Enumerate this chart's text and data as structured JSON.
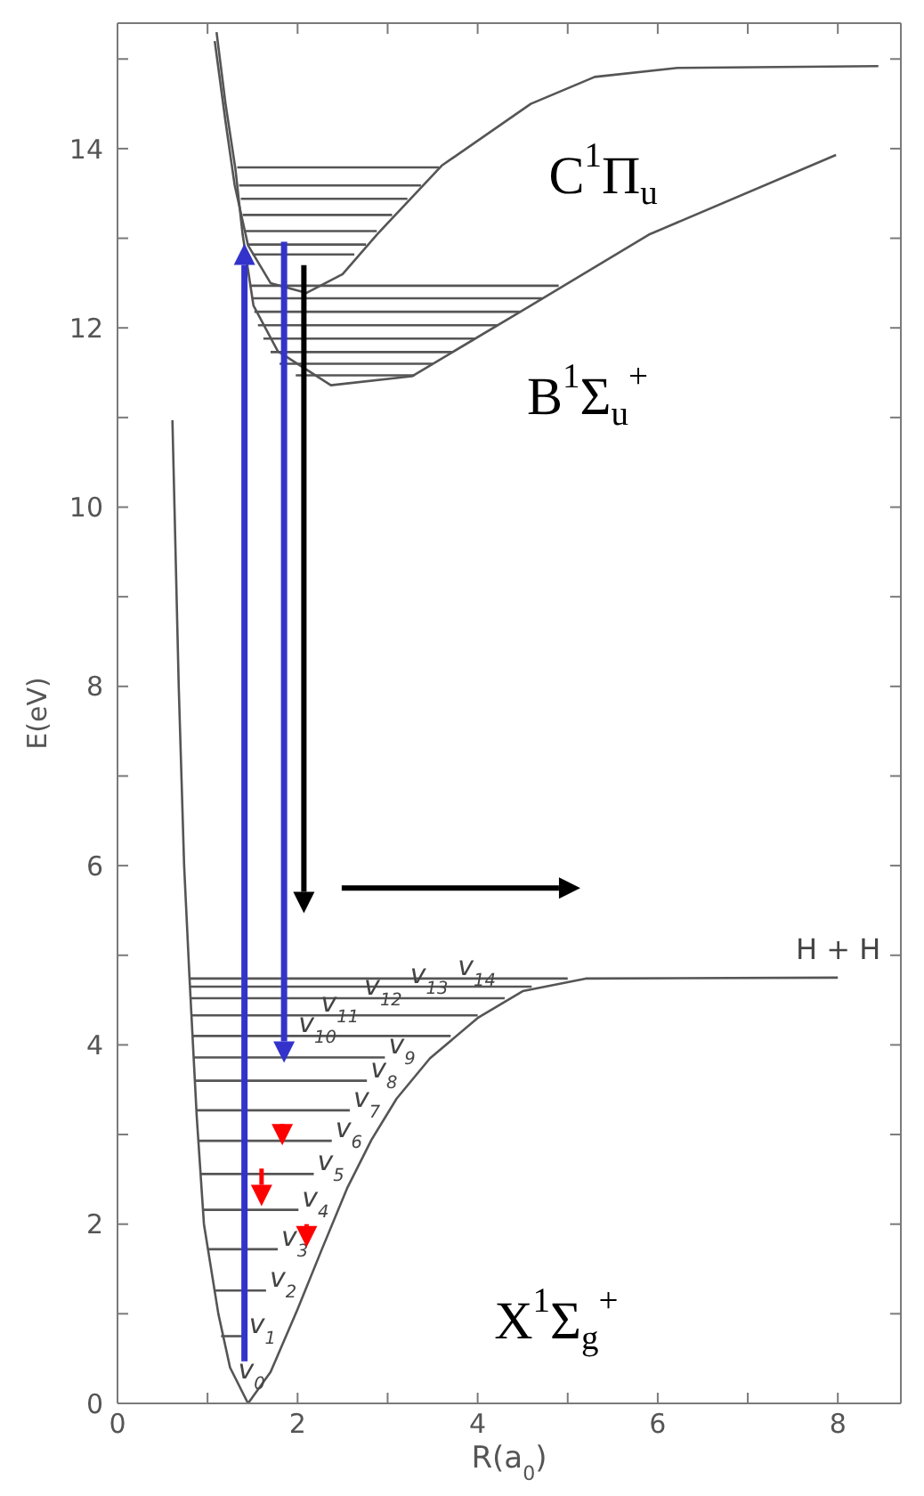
{
  "chart_data": {
    "type": "line",
    "xlabel": "R(a$_{0}$)",
    "ylabel": "E(eV)",
    "xlim": [
      0,
      8.7
    ],
    "ylim": [
      0,
      15.4
    ],
    "xticks": [
      0,
      {
        "value": 1,
        "label": null
      },
      2,
      {
        "value": 3,
        "label": null
      },
      4,
      {
        "value": 5,
        "label": null
      },
      6,
      {
        "value": 7,
        "label": null
      },
      8
    ],
    "yticks": [
      0,
      {
        "value": 1,
        "label": null
      },
      2,
      {
        "value": 3,
        "label": null
      },
      4,
      {
        "value": 5,
        "label": null
      },
      6,
      {
        "value": 7,
        "label": null
      },
      8,
      {
        "value": 9,
        "label": null
      },
      10,
      {
        "value": 11,
        "label": null
      },
      12,
      {
        "value": 13,
        "label": null
      },
      14,
      {
        "value": 15,
        "label": null
      }
    ],
    "marker": "none",
    "series": [
      {
        "color": "#555555",
        "x": [
          0.61,
          0.68,
          0.74,
          0.8,
          0.88,
          0.96,
          1.12,
          1.25,
          1.45,
          1.7,
          2.0,
          2.27,
          2.55,
          2.82,
          3.1,
          3.47,
          4.0,
          4.5,
          5.2,
          8
        ],
        "values": [
          10.97,
          8,
          6,
          4.74,
          3.2,
          2,
          1,
          0.4,
          0,
          0.35,
          1.05,
          1.72,
          2.4,
          2.94,
          3.4,
          3.85,
          4.3,
          4.6,
          4.74,
          4.75
        ]
      },
      {
        "color": "#555555",
        "x": [
          1.1,
          1.2,
          1.31,
          1.39,
          1.51,
          1.78,
          2.37,
          3.27,
          4.59,
          5.9,
          7.98
        ],
        "values": [
          15.3,
          14.5,
          13.77,
          13.04,
          12.25,
          11.74,
          11.36,
          11.46,
          12.25,
          13.04,
          13.93
        ]
      },
      {
        "color": "#555555",
        "x": [
          1.08,
          1.2,
          1.3,
          1.45,
          1.7,
          2.1,
          2.5,
          2.88,
          3.6,
          4.59,
          5.3,
          6.22,
          8.45
        ],
        "values": [
          15.2,
          14.3,
          13.6,
          12.92,
          12.5,
          12.39,
          12.6,
          13.04,
          13.81,
          14.5,
          14.8,
          14.9,
          14.92
        ]
      },
      {
        "color": "#555555",
        "x": [
          1.15,
          1.42
        ],
        "values": [
          0.75,
          0.75
        ]
      },
      {
        "color": "#555555",
        "x": [
          1.07,
          1.65
        ],
        "values": [
          1.26,
          1.26
        ]
      },
      {
        "color": "#555555",
        "x": [
          1.0,
          1.78
        ],
        "values": [
          1.72,
          1.72
        ]
      },
      {
        "color": "#555555",
        "x": [
          0.95,
          2.01
        ],
        "values": [
          2.16,
          2.16
        ]
      },
      {
        "color": "#555555",
        "x": [
          0.92,
          2.18
        ],
        "values": [
          2.56,
          2.56
        ]
      },
      {
        "color": "#555555",
        "x": [
          0.9,
          2.38
        ],
        "values": [
          2.93,
          2.93
        ]
      },
      {
        "color": "#555555",
        "x": [
          0.88,
          2.58
        ],
        "values": [
          3.27,
          3.27
        ]
      },
      {
        "color": "#555555",
        "x": [
          0.86,
          2.77
        ],
        "values": [
          3.6,
          3.6
        ]
      },
      {
        "color": "#555555",
        "x": [
          0.85,
          2.97
        ],
        "values": [
          3.86,
          3.86
        ]
      },
      {
        "color": "#555555",
        "x": [
          0.84,
          3.7
        ],
        "values": [
          4.1,
          4.1
        ]
      },
      {
        "color": "#555555",
        "x": [
          0.83,
          4.0
        ],
        "values": [
          4.33,
          4.33
        ]
      },
      {
        "color": "#555555",
        "x": [
          0.82,
          4.3
        ],
        "values": [
          4.52,
          4.52
        ]
      },
      {
        "color": "#555555",
        "x": [
          0.81,
          4.6
        ],
        "values": [
          4.65,
          4.65
        ]
      },
      {
        "color": "#555555",
        "x": [
          0.8,
          5.0
        ],
        "values": [
          4.74,
          4.74
        ]
      },
      {
        "color": "#555555",
        "x": [
          1.47,
          4.9
        ],
        "values": [
          12.47,
          12.47
        ]
      },
      {
        "color": "#555555",
        "x": [
          1.49,
          4.72
        ],
        "values": [
          12.33,
          12.33
        ]
      },
      {
        "color": "#555555",
        "x": [
          1.52,
          4.47
        ],
        "values": [
          12.18,
          12.18
        ]
      },
      {
        "color": "#555555",
        "x": [
          1.56,
          4.22
        ],
        "values": [
          12.03,
          12.03
        ]
      },
      {
        "color": "#555555",
        "x": [
          1.62,
          3.97
        ],
        "values": [
          11.88,
          11.88
        ]
      },
      {
        "color": "#555555",
        "x": [
          1.7,
          3.72
        ],
        "values": [
          11.73,
          11.73
        ]
      },
      {
        "color": "#555555",
        "x": [
          1.8,
          3.5
        ],
        "values": [
          11.6,
          11.6
        ]
      },
      {
        "color": "#555555",
        "x": [
          1.98,
          3.3
        ],
        "values": [
          11.47,
          11.47
        ]
      },
      {
        "color": "#555555",
        "x": [
          1.33,
          3.57
        ],
        "values": [
          13.79,
          13.79
        ]
      },
      {
        "color": "#555555",
        "x": [
          1.35,
          3.37
        ],
        "values": [
          13.59,
          13.59
        ]
      },
      {
        "color": "#555555",
        "x": [
          1.37,
          3.22
        ],
        "values": [
          13.44,
          13.44
        ]
      },
      {
        "color": "#555555",
        "x": [
          1.39,
          3.05
        ],
        "values": [
          13.26,
          13.26
        ]
      },
      {
        "color": "#555555",
        "x": [
          1.42,
          2.88
        ],
        "values": [
          13.08,
          13.08
        ]
      },
      {
        "color": "#555555",
        "x": [
          1.45,
          2.76
        ],
        "values": [
          12.93,
          12.93
        ]
      },
      {
        "color": "#555555",
        "x": [
          1.5,
          2.63
        ],
        "values": [
          12.82,
          12.82
        ]
      }
    ],
    "annotations": [
      "C$^{1}$Π$_{u}$",
      "B$^{1}$Σ$_{u}$$^{+}$",
      "X$^{1}$Σ$_{g}$$^{+}$",
      "H + H",
      {
        "text": "v$_{0}$",
        "x": 1.3,
        "y": 0.24
      },
      {
        "text": "v$_{1}$",
        "x": 1.42,
        "y": 0.75
      },
      {
        "text": "v$_{2}$",
        "x": 1.65,
        "y": 1.26
      },
      {
        "text": "v$_{3}$",
        "x": 1.78,
        "y": 1.72
      },
      {
        "text": "v$_{4}$",
        "x": 2.01,
        "y": 2.16
      },
      {
        "text": "v$_{5}$",
        "x": 2.18,
        "y": 2.56
      },
      {
        "text": "v$_{6}$",
        "x": 2.38,
        "y": 2.93
      },
      {
        "text": "v$_{7}$",
        "x": 2.58,
        "y": 3.27
      },
      {
        "text": "v$_{8}$",
        "x": 2.77,
        "y": 3.6
      },
      {
        "text": "v$_{9}$",
        "x": 2.97,
        "y": 3.86
      },
      {
        "text": "v$_{10}$",
        "x": 1.97,
        "y": 4.1
      },
      {
        "text": "v$_{11}$",
        "x": 2.22,
        "y": 4.33
      },
      {
        "text": "v$_{12}$",
        "x": 2.7,
        "y": 4.52
      },
      {
        "text": "v$_{13}$",
        "x": 3.21,
        "y": 4.65
      },
      {
        "text": "v$_{14}$",
        "x": 3.74,
        "y": 4.74
      }
    ]
  }
}
